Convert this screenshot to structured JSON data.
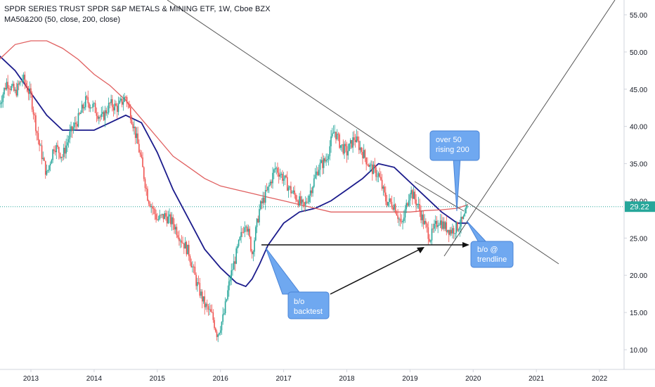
{
  "header": {
    "title": "SPDR SERIES TRUST SPDR S&P METALS & MINING ETF, 1W, Cboe BZX",
    "indicator": "MA50&200 (50, close, 200, close)"
  },
  "colors": {
    "up": "#26a69a",
    "down": "#ef5350",
    "ma50": "#1c1c8c",
    "ma200": "#e06060",
    "trendline": "#555555",
    "price_badge": "#26a69a",
    "callout_fill": "#6fa8f0",
    "callout_stroke": "#4a84d6"
  },
  "price_label": "29.22",
  "annotations": [
    {
      "name": "callout-over50",
      "text": [
        "over 50",
        "rising 200"
      ]
    },
    {
      "name": "callout-bo-trendline",
      "text": [
        "b/o @",
        "trendline"
      ]
    },
    {
      "name": "callout-bo-backtest",
      "text": [
        "b/o",
        "backtest"
      ]
    }
  ],
  "chart_data": {
    "type": "line",
    "title": "SPDR SERIES TRUST SPDR S&P METALS & MINING ETF, 1W, Cboe BZX",
    "ylim": [
      8.5,
      58
    ],
    "xlim": [
      2012.5,
      2022.5
    ],
    "y_ticks": [
      "10.00",
      "15.00",
      "20.00",
      "25.00",
      "30.00",
      "35.00",
      "40.00",
      "45.00",
      "50.00",
      "55.00"
    ],
    "x_ticks": [
      "2013",
      "2014",
      "2015",
      "2016",
      "2017",
      "2018",
      "2019",
      "2020",
      "2021",
      "2022"
    ],
    "grid": false,
    "last_price": 29.22,
    "series": [
      {
        "name": "Price",
        "x": [
          2012.5,
          2012.62,
          2012.75,
          2012.87,
          2013.0,
          2013.12,
          2013.25,
          2013.37,
          2013.5,
          2013.62,
          2013.75,
          2013.87,
          2014.0,
          2014.12,
          2014.25,
          2014.37,
          2014.5,
          2014.6,
          2014.72,
          2014.85,
          2015.0,
          2015.12,
          2015.25,
          2015.37,
          2015.5,
          2015.62,
          2015.75,
          2015.87,
          2015.95,
          2016.05,
          2016.15,
          2016.27,
          2016.4,
          2016.5,
          2016.62,
          2016.75,
          2016.87,
          2017.0,
          2017.1,
          2017.2,
          2017.32,
          2017.45,
          2017.55,
          2017.67,
          2017.8,
          2017.9,
          2018.0,
          2018.12,
          2018.25,
          2018.37,
          2018.5,
          2018.62,
          2018.75,
          2018.87,
          2019.0,
          2019.12,
          2019.2,
          2019.32,
          2019.45,
          2019.55,
          2019.65,
          2019.75,
          2019.85,
          2019.92
        ],
        "values": [
          43.0,
          46.0,
          44.5,
          46.5,
          44.0,
          38.0,
          33.5,
          37.5,
          36.0,
          39.0,
          41.0,
          43.5,
          42.5,
          41.0,
          43.0,
          42.5,
          44.0,
          41.0,
          36.5,
          30.5,
          27.5,
          28.0,
          27.0,
          25.0,
          23.0,
          19.0,
          16.0,
          14.5,
          12.0,
          14.5,
          19.5,
          23.5,
          27.5,
          23.0,
          29.0,
          31.5,
          34.5,
          33.0,
          31.5,
          30.5,
          29.0,
          32.0,
          34.5,
          35.5,
          39.5,
          37.5,
          36.5,
          38.5,
          36.5,
          34.5,
          33.5,
          30.0,
          29.5,
          26.5,
          31.5,
          29.5,
          27.5,
          25.0,
          27.5,
          26.5,
          26.0,
          26.5,
          27.5,
          29.22
        ]
      },
      {
        "name": "MA50",
        "x": [
          2012.5,
          2012.75,
          2013.0,
          2013.25,
          2013.5,
          2013.75,
          2014.0,
          2014.25,
          2014.5,
          2014.75,
          2015.0,
          2015.25,
          2015.5,
          2015.75,
          2016.0,
          2016.25,
          2016.4,
          2016.5,
          2016.62,
          2016.75,
          2017.0,
          2017.25,
          2017.5,
          2017.75,
          2018.0,
          2018.25,
          2018.5,
          2018.75,
          2019.0,
          2019.25,
          2019.5,
          2019.75,
          2019.92
        ],
        "values": [
          49.5,
          47.5,
          44.5,
          41.5,
          39.5,
          39.5,
          39.5,
          40.5,
          41.5,
          40.5,
          36.5,
          31.5,
          27.5,
          23.5,
          21.0,
          19.0,
          18.5,
          19.5,
          21.5,
          24.0,
          27.0,
          28.5,
          29.0,
          30.0,
          31.5,
          33.0,
          35.0,
          34.5,
          32.5,
          30.5,
          28.5,
          27.0,
          27.0
        ]
      },
      {
        "name": "MA200",
        "x": [
          2012.5,
          2012.75,
          2013.0,
          2013.25,
          2013.5,
          2013.75,
          2014.0,
          2014.25,
          2014.5,
          2014.75,
          2015.0,
          2015.25,
          2015.5,
          2015.75,
          2016.0,
          2016.25,
          2016.5,
          2016.75,
          2017.0,
          2017.25,
          2017.5,
          2017.75,
          2018.0,
          2018.25,
          2018.5,
          2018.75,
          2019.0,
          2019.25,
          2019.5,
          2019.75,
          2019.92
        ],
        "values": [
          49.0,
          51.0,
          51.5,
          51.5,
          50.5,
          49.0,
          47.0,
          45.5,
          43.5,
          41.0,
          38.5,
          36.0,
          34.5,
          33.0,
          32.0,
          31.5,
          31.0,
          30.5,
          30.0,
          29.5,
          29.0,
          28.5,
          28.5,
          28.5,
          28.5,
          28.5,
          28.5,
          28.7,
          28.8,
          29.0,
          29.5
        ]
      }
    ]
  }
}
